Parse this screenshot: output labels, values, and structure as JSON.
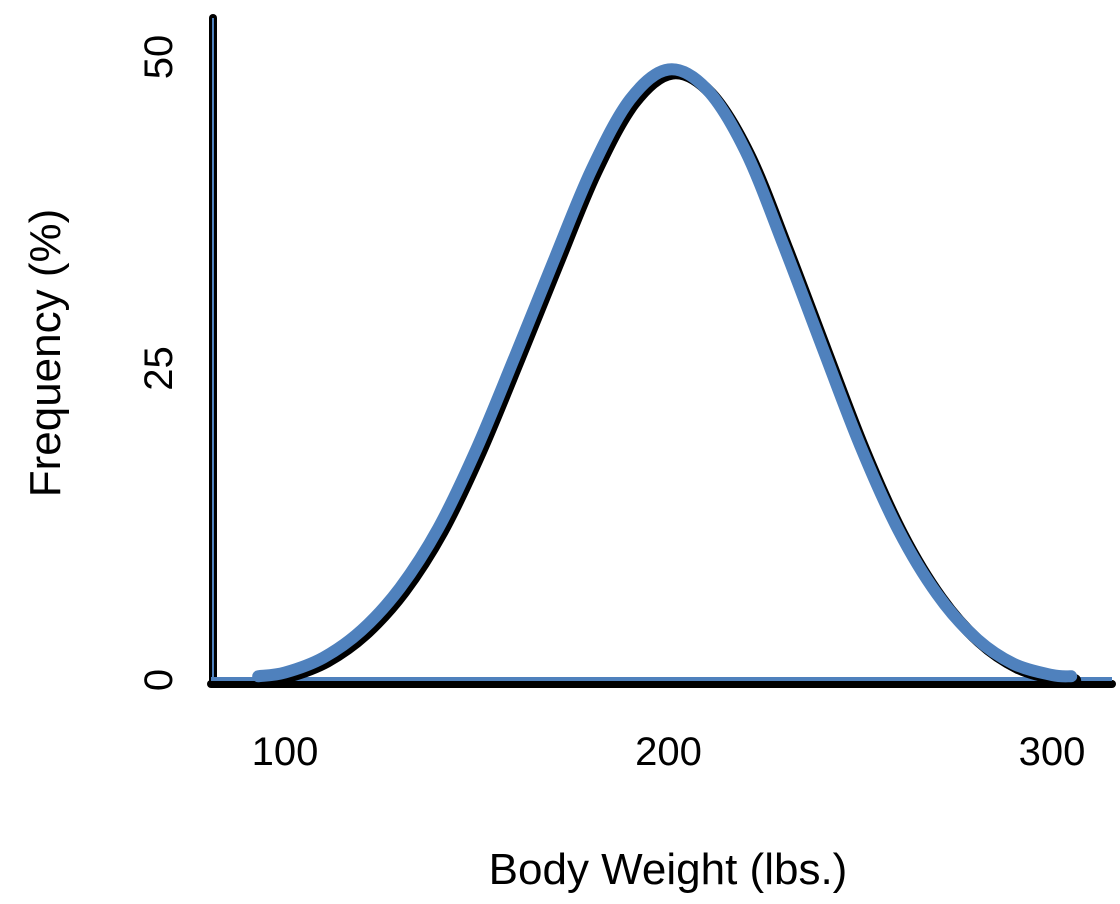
{
  "chart_data": {
    "type": "line",
    "title": "",
    "xlabel": "Body Weight (lbs.)",
    "ylabel": "Frequency (%)",
    "xlim": [
      80,
      312
    ],
    "ylim": [
      0,
      50
    ],
    "x_ticks": [
      100,
      200,
      300
    ],
    "y_ticks": [
      0,
      25,
      50
    ],
    "grid": false,
    "legend": "none",
    "series": [
      {
        "x": [
          93,
          100,
          110,
          120,
          130,
          140,
          150,
          160,
          170,
          180,
          190,
          200,
          210,
          220,
          230,
          240,
          250,
          260,
          270,
          280,
          290,
          300,
          305
        ],
        "y": [
          0.3,
          0.6,
          1.8,
          4.0,
          7.4,
          12.2,
          18.6,
          26.0,
          33.6,
          41.0,
          46.6,
          49.0,
          47.4,
          42.5,
          34.9,
          26.8,
          18.8,
          12.0,
          6.9,
          3.4,
          1.3,
          0.4,
          0.3
        ]
      }
    ],
    "colors": {
      "curve": "#4f81bd",
      "curve_shadow": "#000000",
      "axis": "#000000",
      "baseline": "#4f81bd"
    }
  }
}
